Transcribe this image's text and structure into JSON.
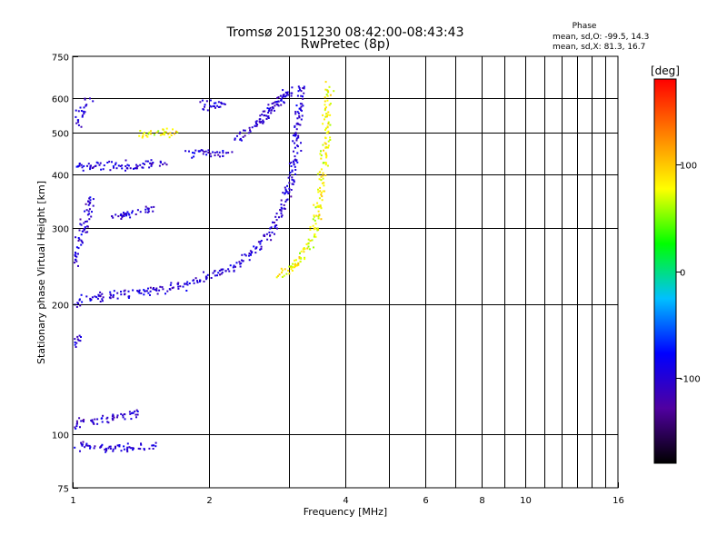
{
  "chart_data": {
    "type": "scatter",
    "title": "Tromsø 20151230 08:42:00-08:43:43",
    "subtitle": "RwPretec (8p)",
    "xlabel": "Frequency [MHz]",
    "ylabel": "Stationary phase Virtual Height [km]",
    "x_scale": "log",
    "y_scale": "log",
    "xlim": [
      1,
      16
    ],
    "ylim": [
      75,
      750
    ],
    "x_ticks": [
      1,
      2,
      4,
      6,
      8,
      10,
      16
    ],
    "x_minor_ticks": [
      3,
      5,
      7,
      9,
      11,
      12,
      13,
      14,
      15
    ],
    "y_ticks": [
      75,
      100,
      200,
      300,
      400,
      500,
      600,
      750
    ],
    "grid": true,
    "phase_legend": {
      "title": "Phase",
      "line_o": "mean, sd,O: -99.5, 14.3",
      "line_x": "mean, sd,X:  81.3, 16.7"
    },
    "colorbar": {
      "label": "[deg]",
      "min": -180,
      "max": 180,
      "ticks": [
        100,
        0,
        -100
      ],
      "stops": [
        "#000000",
        "#5000a0",
        "#0000ff",
        "#00c0ff",
        "#00ff00",
        "#ffff00",
        "#ff8000",
        "#ff0000"
      ]
    },
    "series": [
      {
        "mode": "O",
        "phase_mean": -99.5,
        "phase_sd": 14.3,
        "traces": [
          {
            "x": [
              1.0,
              1.05,
              1.1,
              1.2,
              1.3,
              1.4,
              1.5,
              1.6,
              1.7,
              1.8,
              1.9,
              2.0,
              2.1,
              2.2,
              2.3,
              2.4,
              2.5,
              2.6,
              2.7,
              2.8,
              2.9,
              3.0,
              3.05,
              3.1
            ],
            "y": [
              200,
              205,
              208,
              210,
              212,
              214,
              216,
              218,
              220,
              224,
              228,
              232,
              236,
              242,
              248,
              256,
              266,
              278,
              290,
              310,
              340,
              380,
              420,
              460
            ]
          },
          {
            "x": [
              3.1,
              3.1,
              3.12,
              3.15,
              3.18,
              3.2,
              3.2
            ],
            "y": [
              460,
              500,
              540,
              570,
              600,
              630,
              650
            ]
          },
          {
            "x": [
              1.0,
              1.1,
              1.2,
              1.3,
              1.4,
              1.5,
              1.6
            ],
            "y": [
              418,
              420,
              420,
              420,
              420,
              422,
              430
            ]
          },
          {
            "x": [
              1.8,
              1.9,
              2.0,
              2.1,
              2.2
            ],
            "y": [
              450,
              452,
              450,
              448,
              455
            ]
          },
          {
            "x": [
              2.3,
              2.4,
              2.5,
              2.6,
              2.7,
              2.8,
              2.9,
              3.0
            ],
            "y": [
              480,
              500,
              520,
              545,
              570,
              590,
              610,
              630
            ]
          },
          {
            "x": [
              2.6,
              2.7,
              2.8,
              2.9,
              3.0
            ],
            "y": [
              530,
              560,
              580,
              600,
              620
            ]
          },
          {
            "x": [
              1.9,
              2.0,
              2.1,
              2.2
            ],
            "y": [
              575,
              580,
              585,
              595
            ]
          },
          {
            "x": [
              1.0,
              1.02,
              1.05,
              1.08,
              1.1
            ],
            "y": [
              240,
              270,
              300,
              330,
              360
            ]
          },
          {
            "x": [
              1.2,
              1.3,
              1.4,
              1.5
            ],
            "y": [
              320,
              325,
              330,
              335
            ]
          },
          {
            "x": [
              1.0,
              1.1,
              1.2,
              1.3,
              1.4
            ],
            "y": [
              105,
              107,
              109,
              111,
              113
            ]
          },
          {
            "x": [
              1.0,
              1.1,
              1.2,
              1.3,
              1.4,
              1.5
            ],
            "y": [
              94,
              94,
              93,
              93,
              94,
              94
            ]
          },
          {
            "x": [
              1.0,
              1.02,
              1.05
            ],
            "y": [
              160,
              165,
              170
            ]
          },
          {
            "x": [
              1.0,
              1.02,
              1.04,
              1.06,
              1.08
            ],
            "y": [
              520,
              540,
              560,
              580,
              600
            ]
          }
        ]
      },
      {
        "mode": "X",
        "phase_mean": 81.3,
        "phase_sd": 16.7,
        "traces": [
          {
            "x": [
              3.0,
              3.1,
              3.2,
              3.3,
              3.4,
              3.45,
              3.5,
              3.55,
              3.6,
              3.62,
              3.65
            ],
            "y": [
              240,
              250,
              262,
              275,
              290,
              320,
              360,
              400,
              460,
              540,
              640
            ]
          },
          {
            "x": [
              2.8,
              2.9,
              3.0,
              3.1,
              3.2
            ],
            "y": [
              235,
              238,
              242,
              248,
              255
            ]
          },
          {
            "x": [
              1.4,
              1.5,
              1.6,
              1.7
            ],
            "y": [
              495,
              498,
              500,
              502
            ]
          }
        ]
      }
    ]
  }
}
